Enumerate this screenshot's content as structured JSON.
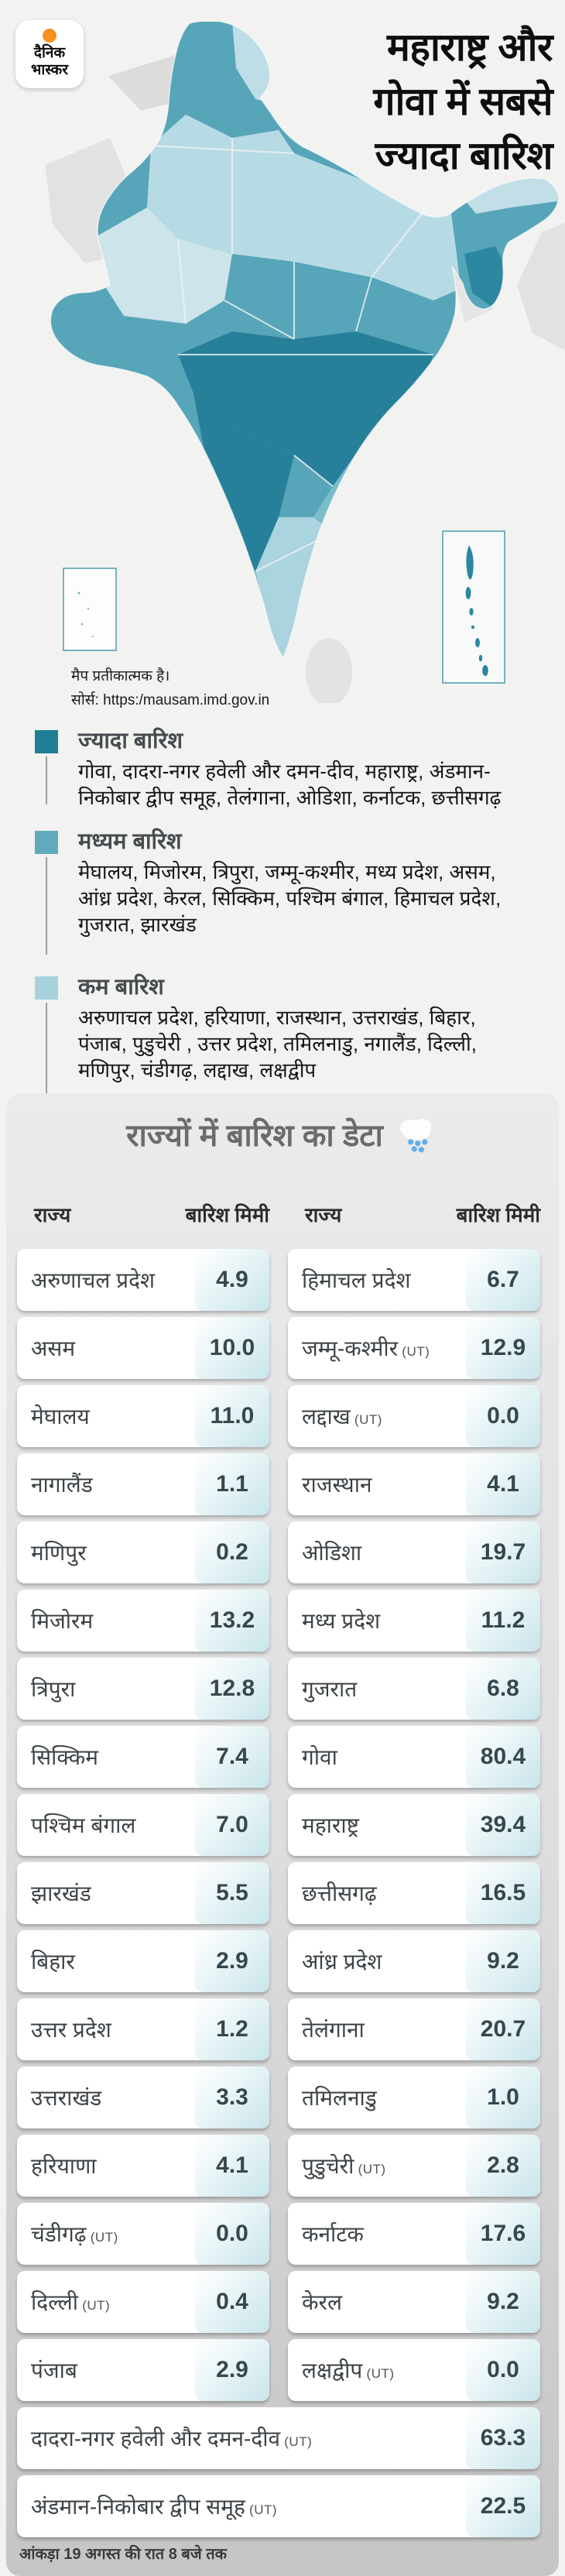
{
  "logo": {
    "line1": "दैनिक",
    "line2": "भास्कर"
  },
  "title": {
    "lines": [
      "महाराष्ट्र और",
      "गोवा में सबसे",
      "ज्यादा बारिश"
    ]
  },
  "map": {
    "note1": "मैप प्रतीकात्मक है।",
    "note2": "सोर्स: https:/mausam.imd.gov.in",
    "colors": {
      "high": "#27809a",
      "medium": "#57a5b9",
      "low": "#aad4df",
      "neutral": "#e0e0e0"
    }
  },
  "legend": [
    {
      "label": "ज्यादा बारिश",
      "color": "#1f7d95",
      "desc": "गोवा, दादरा-नगर हवेली और दमन-दीव, महाराष्ट्र, अंडमान-निकोबार द्वीप समूह, तेलंगाना, ओडिशा, कर्नाटक, छत्तीसगढ़"
    },
    {
      "label": "मध्यम बारिश",
      "color": "#61aabc",
      "desc": "मेघालय, मिजोरम, त्रिपुरा, जम्मू-कश्मीर, मध्य प्रदेश, असम, आंध्र प्रदेश, केरल, सिक्किम, पश्चिम बंगाल, हिमाचल प्रदेश, गुजरात, झारखंड"
    },
    {
      "label": "कम बारिश",
      "color": "#a7d2dd",
      "desc": "अरुणाचल प्रदेश, हरियाणा, राजस्थान, उत्तराखंड, बिहार, पंजाब, पुडुचेरी , उत्तर प्रदेश, तमिलनाडु, नगालैंड, दिल्ली, मणिपुर, चंडीगढ़, लद्दाख, लक्षद्वीप"
    }
  ],
  "table": {
    "title": "राज्यों में बारिश का डेटा",
    "rain_icon": "cloud-with-rain",
    "col_state": "राज्य",
    "col_rain": "बारिश मिमी",
    "ut_suffix": "(UT)",
    "left_rows": [
      {
        "name": "अरुणाचल प्रदेश",
        "ut": false,
        "value": "4.9"
      },
      {
        "name": "असम",
        "ut": false,
        "value": "10.0"
      },
      {
        "name": "मेघालय",
        "ut": false,
        "value": "11.0"
      },
      {
        "name": "नागालैंड",
        "ut": false,
        "value": "1.1"
      },
      {
        "name": "मणिपुर",
        "ut": false,
        "value": "0.2"
      },
      {
        "name": "मिजोरम",
        "ut": false,
        "value": "13.2"
      },
      {
        "name": "त्रिपुरा",
        "ut": false,
        "value": "12.8"
      },
      {
        "name": "सिक्किम",
        "ut": false,
        "value": "7.4"
      },
      {
        "name": "पश्चिम बंगाल",
        "ut": false,
        "value": "7.0"
      },
      {
        "name": "झारखंड",
        "ut": false,
        "value": "5.5"
      },
      {
        "name": "बिहार",
        "ut": false,
        "value": "2.9"
      },
      {
        "name": "उत्तर प्रदेश",
        "ut": false,
        "value": "1.2"
      },
      {
        "name": "उत्तराखंड",
        "ut": false,
        "value": "3.3"
      },
      {
        "name": "हरियाणा",
        "ut": false,
        "value": "4.1"
      },
      {
        "name": "चंडीगढ़",
        "ut": true,
        "value": "0.0"
      },
      {
        "name": "दिल्ली",
        "ut": true,
        "value": "0.4"
      },
      {
        "name": "पंजाब",
        "ut": false,
        "value": "2.9"
      }
    ],
    "right_rows": [
      {
        "name": "हिमाचल प्रदेश",
        "ut": false,
        "value": "6.7"
      },
      {
        "name": "जम्मू-कश्मीर",
        "ut": true,
        "value": "12.9"
      },
      {
        "name": "लद्दाख",
        "ut": true,
        "value": "0.0"
      },
      {
        "name": "राजस्थान",
        "ut": false,
        "value": "4.1"
      },
      {
        "name": "ओडिशा",
        "ut": false,
        "value": "19.7"
      },
      {
        "name": "मध्य प्रदेश",
        "ut": false,
        "value": "11.2"
      },
      {
        "name": "गुजरात",
        "ut": false,
        "value": "6.8"
      },
      {
        "name": "गोवा",
        "ut": false,
        "value": "80.4"
      },
      {
        "name": "महाराष्ट्र",
        "ut": false,
        "value": "39.4"
      },
      {
        "name": "छत्तीसगढ़",
        "ut": false,
        "value": "16.5"
      },
      {
        "name": "आंध्र प्रदेश",
        "ut": false,
        "value": "9.2"
      },
      {
        "name": "तेलंगाना",
        "ut": false,
        "value": "20.7"
      },
      {
        "name": "तमिलनाडु",
        "ut": false,
        "value": "1.0"
      },
      {
        "name": "पुडुचेरी",
        "ut": true,
        "value": "2.8"
      },
      {
        "name": "कर्नाटक",
        "ut": false,
        "value": "17.6"
      },
      {
        "name": "केरल",
        "ut": false,
        "value": "9.2"
      },
      {
        "name": "लक्षद्वीप",
        "ut": true,
        "value": "0.0"
      }
    ],
    "full_rows": [
      {
        "name": "दादरा-नगर हवेली और दमन-दीव",
        "ut": true,
        "value": "63.3"
      },
      {
        "name": "अंडमान-निकोबार द्वीप समूह",
        "ut": true,
        "value": "22.5"
      }
    ]
  },
  "footer": {
    "text": "आंकड़ा 19 अगस्त की रात 8 बजे तक"
  },
  "chart_data": {
    "type": "table",
    "title": "राज्यों में बारिश का डेटा",
    "columns": [
      "राज्य",
      "बारिश मिमी"
    ],
    "rows": [
      [
        "अरुणाचल प्रदेश",
        4.9
      ],
      [
        "असम",
        10.0
      ],
      [
        "मेघालय",
        11.0
      ],
      [
        "नागालैंड",
        1.1
      ],
      [
        "मणिपुर",
        0.2
      ],
      [
        "मिजोरम",
        13.2
      ],
      [
        "त्रिपुरा",
        12.8
      ],
      [
        "सिक्किम",
        7.4
      ],
      [
        "पश्चिम बंगाल",
        7.0
      ],
      [
        "झारखंड",
        5.5
      ],
      [
        "बिहार",
        2.9
      ],
      [
        "उत्तर प्रदेश",
        1.2
      ],
      [
        "उत्तराखंड",
        3.3
      ],
      [
        "हरियाणा",
        4.1
      ],
      [
        "चंडीगढ़ (UT)",
        0.0
      ],
      [
        "दिल्ली (UT)",
        0.4
      ],
      [
        "पंजाब",
        2.9
      ],
      [
        "हिमाचल प्रदेश",
        6.7
      ],
      [
        "जम्मू-कश्मीर (UT)",
        12.9
      ],
      [
        "लद्दाख (UT)",
        0.0
      ],
      [
        "राजस्थान",
        4.1
      ],
      [
        "ओडिशा",
        19.7
      ],
      [
        "मध्य प्रदेश",
        11.2
      ],
      [
        "गुजरात",
        6.8
      ],
      [
        "गोवा",
        80.4
      ],
      [
        "महाराष्ट्र",
        39.4
      ],
      [
        "छत्तीसगढ़",
        16.5
      ],
      [
        "आंध्र प्रदेश",
        9.2
      ],
      [
        "तेलंगाना",
        20.7
      ],
      [
        "तमिलनाडु",
        1.0
      ],
      [
        "पुडुचेरी (UT)",
        2.8
      ],
      [
        "कर्नाटक",
        17.6
      ],
      [
        "केरल",
        9.2
      ],
      [
        "लक्षद्वीप (UT)",
        0.0
      ],
      [
        "दादरा-नगर हवेली और दमन-दीव (UT)",
        63.3
      ],
      [
        "अंडमान-निकोबार द्वीप समूह (UT)",
        22.5
      ]
    ]
  }
}
